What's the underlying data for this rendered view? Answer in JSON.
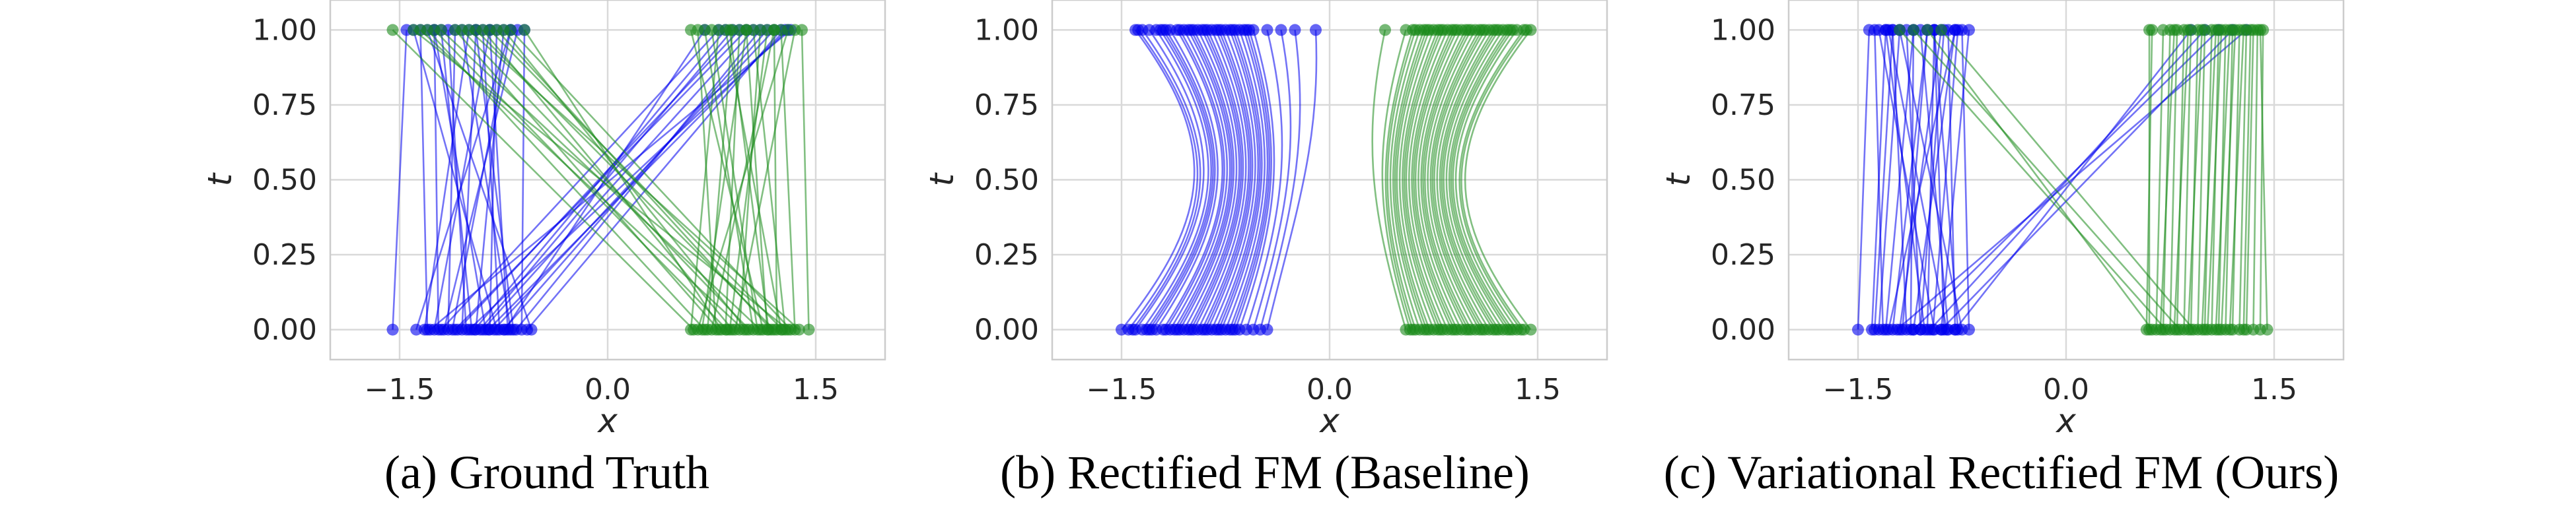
{
  "colors": {
    "blue": "#0000ee",
    "green": "#1a8a1a",
    "grid": "#d9d9d9",
    "frame": "#cccccc"
  },
  "chart_data": [
    {
      "type": "line",
      "caption": "(a) Ground Truth",
      "xlabel": "x",
      "ylabel": "t",
      "xlim": [
        -2.0,
        2.0
      ],
      "ylim": [
        -0.1,
        1.1
      ],
      "x_ticks": [
        "-1.5",
        "0.0",
        "1.5"
      ],
      "y_ticks": [
        "0.00",
        "0.25",
        "0.50",
        "0.75",
        "1.00"
      ],
      "grid": true,
      "series": [
        {
          "color": "blue",
          "pairs": [
            [
              -1.55,
              -1.45
            ],
            [
              -1.38,
              -0.7
            ],
            [
              -1.3,
              -1.35
            ],
            [
              -1.25,
              -0.85
            ],
            [
              -1.2,
              0.8
            ],
            [
              -1.15,
              -1.1
            ],
            [
              -1.1,
              1.0
            ],
            [
              -1.05,
              -0.95
            ],
            [
              -1.0,
              1.3
            ],
            [
              -0.95,
              -0.75
            ],
            [
              -0.92,
              0.9
            ],
            [
              -0.88,
              -1.25
            ],
            [
              -0.82,
              1.2
            ],
            [
              -0.78,
              -0.9
            ],
            [
              -0.74,
              0.7
            ],
            [
              -0.7,
              -1.05
            ],
            [
              -0.66,
              1.1
            ],
            [
              -0.62,
              -0.6
            ],
            [
              -0.58,
              1.25
            ],
            [
              -0.55,
              -1.3
            ],
            [
              -1.32,
              -1.0
            ],
            [
              -1.18,
              -0.65
            ],
            [
              -1.08,
              0.95
            ],
            [
              -0.98,
              -1.2
            ],
            [
              -0.9,
              1.05
            ],
            [
              -0.85,
              -0.8
            ],
            [
              -0.75,
              1.15
            ],
            [
              -0.68,
              -0.95
            ],
            [
              -1.28,
              1.32
            ],
            [
              -1.12,
              -0.7
            ],
            [
              -1.02,
              -1.15
            ],
            [
              -0.96,
              0.85
            ],
            [
              -0.86,
              1.28
            ],
            [
              -0.8,
              -1.4
            ],
            [
              -0.72,
              -0.85
            ],
            [
              -1.22,
              -1.25
            ]
          ]
        },
        {
          "color": "green",
          "pairs": [
            [
              1.45,
              1.4
            ],
            [
              0.6,
              0.8
            ],
            [
              0.7,
              -1.3
            ],
            [
              0.75,
              1.2
            ],
            [
              0.8,
              -1.1
            ],
            [
              0.85,
              0.95
            ],
            [
              0.9,
              -0.9
            ],
            [
              0.95,
              1.1
            ],
            [
              1.0,
              -0.75
            ],
            [
              1.05,
              0.7
            ],
            [
              1.1,
              -1.2
            ],
            [
              1.15,
              1.0
            ],
            [
              1.2,
              -0.95
            ],
            [
              1.25,
              0.85
            ],
            [
              1.3,
              -1.4
            ],
            [
              1.35,
              1.25
            ],
            [
              1.38,
              -1.0
            ],
            [
              0.65,
              1.3
            ],
            [
              0.72,
              0.9
            ],
            [
              0.82,
              -0.6
            ],
            [
              0.88,
              1.15
            ],
            [
              0.98,
              -1.35
            ],
            [
              1.08,
              0.75
            ],
            [
              1.18,
              -0.8
            ],
            [
              1.28,
              1.05
            ],
            [
              0.62,
              -1.55
            ],
            [
              0.78,
              0.65
            ],
            [
              0.92,
              1.35
            ],
            [
              1.02,
              -1.05
            ],
            [
              1.12,
              0.6
            ],
            [
              1.22,
              1.2
            ],
            [
              1.32,
              -0.7
            ],
            [
              0.68,
              1.0
            ],
            [
              0.86,
              -1.25
            ],
            [
              1.16,
              0.88
            ],
            [
              1.26,
              -0.85
            ]
          ]
        }
      ]
    },
    {
      "type": "line",
      "caption": "(b) Rectified FM (Baseline)",
      "xlabel": "x",
      "ylabel": "t",
      "xlim": [
        -2.0,
        2.0
      ],
      "ylim": [
        -0.1,
        1.1
      ],
      "x_ticks": [
        "-1.5",
        "0.0",
        "1.5"
      ],
      "y_ticks": [
        "0.00",
        "0.25",
        "0.50",
        "0.75",
        "1.00"
      ],
      "grid": true,
      "series": [
        {
          "color": "blue",
          "pairs": [
            [
              -1.5,
              -1.4
            ],
            [
              -1.4,
              -1.3
            ],
            [
              -1.35,
              -1.25
            ],
            [
              -1.3,
              -1.2
            ],
            [
              -1.25,
              -1.15
            ],
            [
              -1.2,
              -1.1
            ],
            [
              -1.15,
              -1.05
            ],
            [
              -1.1,
              -1.0
            ],
            [
              -1.05,
              -0.95
            ],
            [
              -1.0,
              -0.9
            ],
            [
              -0.95,
              -0.85
            ],
            [
              -0.9,
              -0.8
            ],
            [
              -0.85,
              -0.75
            ],
            [
              -0.8,
              -0.7
            ],
            [
              -0.75,
              -0.65
            ],
            [
              -0.7,
              -0.6
            ],
            [
              -0.65,
              -0.55
            ],
            [
              -0.6,
              -0.45
            ],
            [
              -0.55,
              -0.35
            ],
            [
              -0.5,
              -0.25
            ],
            [
              -0.45,
              -0.1
            ],
            [
              -1.32,
              -1.22
            ],
            [
              -1.18,
              -1.08
            ],
            [
              -1.02,
              -0.92
            ],
            [
              -0.88,
              -0.78
            ],
            [
              -0.72,
              -0.62
            ],
            [
              -1.28,
              -1.18
            ],
            [
              -1.12,
              -1.02
            ],
            [
              -0.98,
              -0.88
            ],
            [
              -0.82,
              -0.72
            ],
            [
              -1.42,
              -1.35
            ],
            [
              -1.45,
              -1.38
            ],
            [
              -0.68,
              -0.58
            ],
            [
              -0.78,
              -0.68
            ],
            [
              -0.92,
              -0.82
            ],
            [
              -1.08,
              -0.98
            ]
          ]
        },
        {
          "color": "green",
          "pairs": [
            [
              0.55,
              0.4
            ],
            [
              0.6,
              0.6
            ],
            [
              0.65,
              0.65
            ],
            [
              0.7,
              0.7
            ],
            [
              0.75,
              0.75
            ],
            [
              0.8,
              0.8
            ],
            [
              0.85,
              0.85
            ],
            [
              0.9,
              0.9
            ],
            [
              0.95,
              0.95
            ],
            [
              1.0,
              1.0
            ],
            [
              1.05,
              1.05
            ],
            [
              1.1,
              1.1
            ],
            [
              1.15,
              1.15
            ],
            [
              1.2,
              1.2
            ],
            [
              1.25,
              1.25
            ],
            [
              1.3,
              1.3
            ],
            [
              1.35,
              1.35
            ],
            [
              1.4,
              1.42
            ],
            [
              1.45,
              1.45
            ],
            [
              0.62,
              0.62
            ],
            [
              0.68,
              0.68
            ],
            [
              0.78,
              0.78
            ],
            [
              0.88,
              0.88
            ],
            [
              0.98,
              0.98
            ],
            [
              1.08,
              1.08
            ],
            [
              1.18,
              1.18
            ],
            [
              1.28,
              1.28
            ],
            [
              1.38,
              1.4
            ],
            [
              0.72,
              0.72
            ],
            [
              0.82,
              0.82
            ],
            [
              0.92,
              0.92
            ],
            [
              1.02,
              1.02
            ],
            [
              1.12,
              1.12
            ],
            [
              1.22,
              1.22
            ],
            [
              1.32,
              1.32
            ],
            [
              0.58,
              0.55
            ]
          ]
        }
      ]
    },
    {
      "type": "line",
      "caption": "(c) Variational Rectified FM (Ours)",
      "xlabel": "x",
      "ylabel": "t",
      "xlim": [
        -2.0,
        2.0
      ],
      "ylim": [
        -0.1,
        1.1
      ],
      "x_ticks": [
        "-1.5",
        "0.0",
        "1.5"
      ],
      "y_ticks": [
        "0.00",
        "0.25",
        "0.50",
        "0.75",
        "1.00"
      ],
      "grid": true,
      "series": [
        {
          "color": "blue",
          "pairs": [
            [
              -1.5,
              -1.42
            ],
            [
              -1.4,
              -1.3
            ],
            [
              -1.35,
              -1.2
            ],
            [
              -1.3,
              -1.1
            ],
            [
              -1.25,
              -1.0
            ],
            [
              -1.2,
              -0.9
            ],
            [
              -1.15,
              -1.25
            ],
            [
              -1.1,
              -0.8
            ],
            [
              -1.05,
              -1.15
            ],
            [
              -1.0,
              -0.95
            ],
            [
              -0.95,
              -1.35
            ],
            [
              -0.9,
              -0.7
            ],
            [
              -0.85,
              -1.05
            ],
            [
              -0.8,
              -0.85
            ],
            [
              -0.75,
              -1.2
            ],
            [
              -0.7,
              -0.75
            ],
            [
              -1.32,
              -1.38
            ],
            [
              -1.18,
              -1.0
            ],
            [
              -1.02,
              -1.3
            ],
            [
              -0.88,
              -0.95
            ],
            [
              -1.22,
              1.3
            ],
            [
              -1.1,
              1.1
            ],
            [
              -0.98,
              1.0
            ],
            [
              -0.9,
              1.2
            ],
            [
              -0.8,
              0.9
            ],
            [
              -1.28,
              -0.8
            ],
            [
              -1.12,
              -1.1
            ],
            [
              -0.96,
              -0.78
            ],
            [
              -0.86,
              -1.28
            ],
            [
              -0.78,
              -0.95
            ],
            [
              -1.38,
              -1.25
            ],
            [
              -1.05,
              -0.88
            ]
          ]
        },
        {
          "color": "green",
          "pairs": [
            [
              1.45,
              1.4
            ],
            [
              0.6,
              0.6
            ],
            [
              0.65,
              0.7
            ],
            [
              0.7,
              0.75
            ],
            [
              0.75,
              0.8
            ],
            [
              0.8,
              0.85
            ],
            [
              0.85,
              0.9
            ],
            [
              0.9,
              0.95
            ],
            [
              0.95,
              1.0
            ],
            [
              1.0,
              1.05
            ],
            [
              1.05,
              1.1
            ],
            [
              1.1,
              1.15
            ],
            [
              1.15,
              1.2
            ],
            [
              1.2,
              1.25
            ],
            [
              1.25,
              1.3
            ],
            [
              1.3,
              1.35
            ],
            [
              1.35,
              1.38
            ],
            [
              1.4,
              1.42
            ],
            [
              0.62,
              -1.0
            ],
            [
              0.72,
              -1.2
            ],
            [
              0.82,
              -1.1
            ],
            [
              0.92,
              -0.9
            ],
            [
              0.68,
              0.78
            ],
            [
              0.78,
              0.88
            ],
            [
              0.88,
              0.98
            ],
            [
              0.98,
              1.08
            ],
            [
              1.08,
              1.18
            ],
            [
              1.18,
              1.28
            ],
            [
              1.28,
              1.33
            ],
            [
              0.58,
              0.62
            ],
            [
              1.12,
              1.22
            ],
            [
              1.02,
              1.12
            ]
          ]
        }
      ]
    }
  ]
}
